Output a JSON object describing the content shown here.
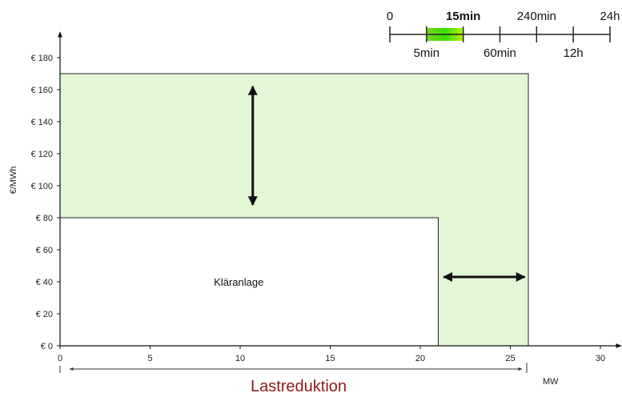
{
  "chart_data": {
    "type": "area",
    "xlabel": "MW",
    "ylabel": "€/MWh",
    "xlim": [
      0,
      30
    ],
    "ylim": [
      0,
      180
    ],
    "x_ticks": [
      0,
      5,
      10,
      15,
      20,
      25,
      30
    ],
    "y_ticks": [
      {
        "value": 0,
        "label": "€ 0"
      },
      {
        "value": 20,
        "label": "€ 20"
      },
      {
        "value": 40,
        "label": "€ 40"
      },
      {
        "value": 60,
        "label": "€ 60"
      },
      {
        "value": 80,
        "label": "€ 80"
      },
      {
        "value": 100,
        "label": "€ 100"
      },
      {
        "value": 120,
        "label": "€ 120"
      },
      {
        "value": 140,
        "label": "€ 140"
      },
      {
        "value": 160,
        "label": "€ 160"
      },
      {
        "value": 180,
        "label": "€ 180"
      }
    ],
    "regions": [
      {
        "name": "flex",
        "x": [
          0,
          26
        ],
        "y": [
          0,
          170
        ],
        "color": "#e2f7d6"
      },
      {
        "name": "Kläranlage",
        "label": "Kläranlage",
        "x": [
          0,
          21
        ],
        "y": [
          0,
          80
        ],
        "color": "#ffffff"
      }
    ],
    "arrows": [
      {
        "direction": "vertical",
        "x": 10.7,
        "y": [
          88,
          162
        ]
      },
      {
        "direction": "horizontal",
        "y": 43,
        "x": [
          21.3,
          25.8
        ]
      }
    ],
    "bracket": {
      "label": "Lastreduktion",
      "x": [
        0,
        26
      ]
    },
    "timeline": {
      "ticks": [
        {
          "position": 0,
          "label": "0",
          "row": "top",
          "bold": false
        },
        {
          "position": 1,
          "label": "5min",
          "row": "bottom",
          "bold": false
        },
        {
          "position": 2,
          "label": "15min",
          "row": "top",
          "bold": true
        },
        {
          "position": 3,
          "label": "60min",
          "row": "bottom",
          "bold": false
        },
        {
          "position": 4,
          "label": "240min",
          "row": "top",
          "bold": false
        },
        {
          "position": 5,
          "label": "12h",
          "row": "bottom",
          "bold": false
        },
        {
          "position": 6,
          "label": "24h",
          "row": "top",
          "bold": false
        }
      ],
      "highlight": {
        "from": 1,
        "to": 2,
        "colors": [
          "#7dd321",
          "#33e000",
          "#b8f000"
        ]
      }
    }
  }
}
